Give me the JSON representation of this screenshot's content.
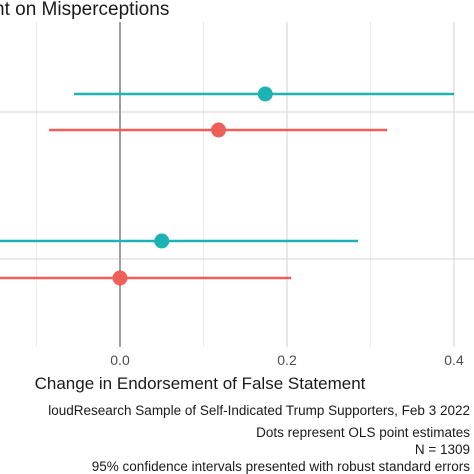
{
  "chart_data": {
    "type": "scatter",
    "title": "nt on Misperceptions",
    "xlabel": "Change in Endorsement of False Statement",
    "ylabel": "",
    "xlim": [
      -0.2,
      0.42
    ],
    "x_ticks": [
      0.0,
      0.2,
      0.4
    ],
    "x_tick_labels": [
      "0.0",
      "0.2",
      "0.4"
    ],
    "reference_line_x": 0.0,
    "grid": true,
    "legend": "none",
    "colors": [
      "#1BB3B3",
      "#EF5F5A"
    ],
    "estimates": [
      {
        "group": 1,
        "series_index": 0,
        "estimate": 0.174,
        "ci_low": -0.055,
        "ci_high": 0.4
      },
      {
        "group": 1,
        "series_index": 1,
        "estimate": 0.118,
        "ci_low": -0.085,
        "ci_high": 0.32
      },
      {
        "group": 2,
        "series_index": 0,
        "estimate": 0.05,
        "ci_low": -0.2,
        "ci_high": 0.285
      },
      {
        "group": 2,
        "series_index": 1,
        "estimate": 0.0,
        "ci_low": -0.2,
        "ci_high": 0.205
      }
    ],
    "caption": [
      "loudResearch Sample of Self-Indicated Trump Supporters, Feb 3 2022",
      "Dots represent OLS point estimates",
      "N = 1309",
      "95% confidence intervals presented with robust standard errors"
    ]
  }
}
